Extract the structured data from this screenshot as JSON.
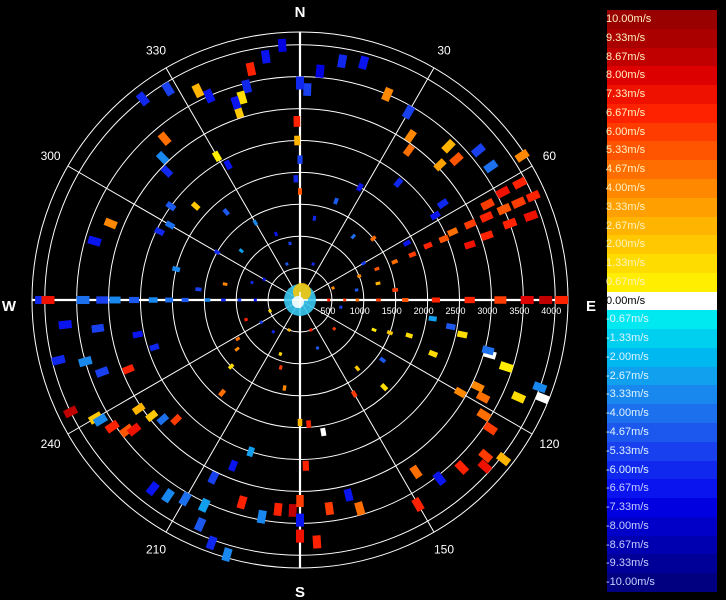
{
  "chart_data": {
    "type": "polar-scatter",
    "title": "",
    "compass_labels": [
      "N",
      "E",
      "S",
      "W"
    ],
    "angle_ticks": [
      "30",
      "60",
      "120",
      "150",
      "210",
      "240",
      "300",
      "330"
    ],
    "range_ticks": [
      "500",
      "1000",
      "1500",
      "2000",
      "2500",
      "3000",
      "3500",
      "4000"
    ],
    "range_max": 4200,
    "legend": {
      "placement": "right",
      "entries": [
        {
          "label": "10.00m/s",
          "color": "#990000"
        },
        {
          "label": "9.33m/s",
          "color": "#aa0000"
        },
        {
          "label": "8.67m/s",
          "color": "#c00000"
        },
        {
          "label": "8.00m/s",
          "color": "#dd0000"
        },
        {
          "label": "7.33m/s",
          "color": "#ee1100"
        },
        {
          "label": "6.67m/s",
          "color": "#ff2200"
        },
        {
          "label": "6.00m/s",
          "color": "#ff3c00"
        },
        {
          "label": "5.33m/s",
          "color": "#ff5500"
        },
        {
          "label": "4.67m/s",
          "color": "#ff6e00"
        },
        {
          "label": "4.00m/s",
          "color": "#ff8800"
        },
        {
          "label": "3.33m/s",
          "color": "#ffa000"
        },
        {
          "label": "2.67m/s",
          "color": "#ffb400"
        },
        {
          "label": "2.00m/s",
          "color": "#ffc800"
        },
        {
          "label": "1.33m/s",
          "color": "#ffdc00"
        },
        {
          "label": "0.67m/s",
          "color": "#ffee00"
        },
        {
          "label": "0.00m/s",
          "color": "#ffffff"
        },
        {
          "label": "-0.67m/s",
          "color": "#00e8f0"
        },
        {
          "label": "-1.33m/s",
          "color": "#00d0f0"
        },
        {
          "label": "-2.00m/s",
          "color": "#00b8f0"
        },
        {
          "label": "-2.67m/s",
          "color": "#10a0ee"
        },
        {
          "label": "-3.33m/s",
          "color": "#1888ee"
        },
        {
          "label": "-4.00m/s",
          "color": "#1c70ee"
        },
        {
          "label": "-4.67m/s",
          "color": "#1c58ee"
        },
        {
          "label": "-5.33m/s",
          "color": "#1840ee"
        },
        {
          "label": "-6.00m/s",
          "color": "#1028ee"
        },
        {
          "label": "-6.67m/s",
          "color": "#0a14ee"
        },
        {
          "label": "-7.33m/s",
          "color": "#0000e0"
        },
        {
          "label": "-8.00m/s",
          "color": "#0000c8"
        },
        {
          "label": "-8.67m/s",
          "color": "#0000b0"
        },
        {
          "label": "-9.33m/s",
          "color": "#000098"
        },
        {
          "label": "-10.00m/s",
          "color": "#000080"
        }
      ]
    },
    "points": [
      {
        "az": 90,
        "r": 3560,
        "v": 8.0
      },
      {
        "az": 90,
        "r": 3850,
        "v": 8.67
      },
      {
        "az": 90,
        "r": 4100,
        "v": 6.67
      },
      {
        "az": 90,
        "r": 3140,
        "v": 6.0
      },
      {
        "az": 90,
        "r": 2660,
        "v": 6.67
      },
      {
        "az": 90,
        "r": 2130,
        "v": 6.67
      },
      {
        "az": 90,
        "r": 1650,
        "v": 5.33
      },
      {
        "az": 90,
        "r": 1230,
        "v": 6.0
      },
      {
        "az": 90,
        "r": 900,
        "v": 4.67
      },
      {
        "az": 90,
        "r": 700,
        "v": 6.0
      },
      {
        "az": 90,
        "r": 450,
        "v": 6.67
      },
      {
        "az": 66,
        "r": 4000,
        "v": 6.67
      },
      {
        "az": 66,
        "r": 3750,
        "v": 6.0
      },
      {
        "az": 66,
        "r": 3500,
        "v": 5.33
      },
      {
        "az": 66,
        "r": 3200,
        "v": 6.67
      },
      {
        "az": 66,
        "r": 2920,
        "v": 6.0
      },
      {
        "az": 66,
        "r": 2620,
        "v": 4.67
      },
      {
        "az": 67,
        "r": 2450,
        "v": 5.33
      },
      {
        "az": 67,
        "r": 2180,
        "v": 6.67
      },
      {
        "az": 68,
        "r": 1900,
        "v": 6.0
      },
      {
        "az": 68,
        "r": 1600,
        "v": 4.67
      },
      {
        "az": 68,
        "r": 1300,
        "v": 5.33
      },
      {
        "az": 68,
        "r": 1000,
        "v": 4.0
      },
      {
        "az": 62,
        "r": 3900,
        "v": 6.67
      },
      {
        "az": 62,
        "r": 3600,
        "v": 7.33
      },
      {
        "az": 63,
        "r": 3300,
        "v": 6.0
      },
      {
        "az": 70,
        "r": 3850,
        "v": 7.33
      },
      {
        "az": 70,
        "r": 3500,
        "v": 6.67
      },
      {
        "az": 71,
        "r": 3100,
        "v": 6.67
      },
      {
        "az": 72,
        "r": 2800,
        "v": 7.33
      },
      {
        "az": 57,
        "r": 4150,
        "v": 4.0
      },
      {
        "az": 55,
        "r": 3650,
        "v": -4.0
      },
      {
        "az": 50,
        "r": 3650,
        "v": -5.33
      },
      {
        "az": 48,
        "r": 3300,
        "v": 5.33
      },
      {
        "az": 46,
        "r": 3050,
        "v": 3.33
      },
      {
        "az": 44,
        "r": 3350,
        "v": 2.67
      },
      {
        "az": 56,
        "r": 2700,
        "v": -6.0
      },
      {
        "az": 58,
        "r": 2500,
        "v": -6.67
      },
      {
        "az": 62,
        "r": 1900,
        "v": -6.67
      },
      {
        "az": 40,
        "r": 2400,
        "v": -6.0
      },
      {
        "az": 36,
        "r": 2900,
        "v": 4.67
      },
      {
        "az": 34,
        "r": 3100,
        "v": 4.0
      },
      {
        "az": 30,
        "r": 3400,
        "v": -5.33
      },
      {
        "az": 23,
        "r": 3500,
        "v": 4.0
      },
      {
        "az": 15,
        "r": 3850,
        "v": -6.67
      },
      {
        "az": 10,
        "r": 3800,
        "v": -6.0
      },
      {
        "az": 5,
        "r": 3600,
        "v": -7.33
      },
      {
        "az": 2,
        "r": 3300,
        "v": -5.33
      },
      {
        "az": 0,
        "r": 3400,
        "v": -6.0
      },
      {
        "az": 359,
        "r": 2800,
        "v": 6.67
      },
      {
        "az": 359,
        "r": 2500,
        "v": 2.67
      },
      {
        "az": 0,
        "r": 2200,
        "v": -5.33
      },
      {
        "az": 358,
        "r": 1900,
        "v": -6.0
      },
      {
        "az": 0,
        "r": 1700,
        "v": 5.33
      },
      {
        "az": 356,
        "r": 4000,
        "v": -7.33
      },
      {
        "az": 352,
        "r": 3850,
        "v": -6.67
      },
      {
        "az": 348,
        "r": 3700,
        "v": 6.67
      },
      {
        "az": 346,
        "r": 3450,
        "v": -6.0
      },
      {
        "az": 344,
        "r": 3300,
        "v": 1.33
      },
      {
        "az": 342,
        "r": 3100,
        "v": 2.0
      },
      {
        "az": 342,
        "r": 3250,
        "v": -6.67
      },
      {
        "az": 336,
        "r": 3500,
        "v": -6.67
      },
      {
        "az": 334,
        "r": 3650,
        "v": 2.67
      },
      {
        "az": 328,
        "r": 3900,
        "v": -5.33
      },
      {
        "az": 322,
        "r": 4000,
        "v": -6.0
      },
      {
        "az": 320,
        "r": 3300,
        "v": 4.67
      },
      {
        "az": 316,
        "r": 3100,
        "v": -3.33
      },
      {
        "az": 314,
        "r": 2900,
        "v": -6.0
      },
      {
        "az": 330,
        "r": 2600,
        "v": 0.67
      },
      {
        "az": 332,
        "r": 2400,
        "v": -6.67
      },
      {
        "az": 312,
        "r": 2200,
        "v": 2.0
      },
      {
        "az": 306,
        "r": 2500,
        "v": -4.67
      },
      {
        "az": 300,
        "r": 2350,
        "v": -4.0
      },
      {
        "az": 296,
        "r": 2450,
        "v": -6.0
      },
      {
        "az": 292,
        "r": 3200,
        "v": 4.0
      },
      {
        "az": 286,
        "r": 3350,
        "v": -6.67
      },
      {
        "az": 270,
        "r": 4050,
        "v": -6.0
      },
      {
        "az": 270,
        "r": 3950,
        "v": 7.33
      },
      {
        "az": 270,
        "r": 3400,
        "v": -4.0
      },
      {
        "az": 270,
        "r": 3100,
        "v": -5.33
      },
      {
        "az": 270,
        "r": 2900,
        "v": -3.33
      },
      {
        "az": 270,
        "r": 2600,
        "v": -4.67
      },
      {
        "az": 270,
        "r": 2300,
        "v": -3.33
      },
      {
        "az": 270,
        "r": 2050,
        "v": -4.0
      },
      {
        "az": 270,
        "r": 1800,
        "v": -4.67
      },
      {
        "az": 270,
        "r": 1450,
        "v": -3.33
      },
      {
        "az": 270,
        "r": 1200,
        "v": -6.0
      },
      {
        "az": 270,
        "r": 950,
        "v": -5.33
      },
      {
        "az": 270,
        "r": 700,
        "v": -6.67
      },
      {
        "az": 264,
        "r": 3700,
        "v": -6.67
      },
      {
        "az": 262,
        "r": 3200,
        "v": -5.33
      },
      {
        "az": 256,
        "r": 3900,
        "v": -6.0
      },
      {
        "az": 254,
        "r": 3500,
        "v": -3.33
      },
      {
        "az": 258,
        "r": 2600,
        "v": -6.67
      },
      {
        "az": 250,
        "r": 3300,
        "v": -5.33
      },
      {
        "az": 248,
        "r": 2900,
        "v": 6.67
      },
      {
        "az": 252,
        "r": 2400,
        "v": -6.0
      },
      {
        "az": 244,
        "r": 4000,
        "v": 8.67
      },
      {
        "az": 240,
        "r": 3700,
        "v": 2.0
      },
      {
        "az": 239,
        "r": 3650,
        "v": -3.33
      },
      {
        "az": 236,
        "r": 3550,
        "v": 6.67
      },
      {
        "az": 233,
        "r": 3400,
        "v": 5.33
      },
      {
        "az": 232,
        "r": 3300,
        "v": 7.33
      },
      {
        "az": 236,
        "r": 3050,
        "v": 2.67
      },
      {
        "az": 232,
        "r": 2950,
        "v": 2.0
      },
      {
        "az": 229,
        "r": 2850,
        "v": -4.0
      },
      {
        "az": 226,
        "r": 2700,
        "v": 6.0
      },
      {
        "az": 218,
        "r": 3750,
        "v": -6.67
      },
      {
        "az": 214,
        "r": 3700,
        "v": -3.33
      },
      {
        "az": 210,
        "r": 3600,
        "v": -4.0
      },
      {
        "az": 205,
        "r": 3550,
        "v": -2.67
      },
      {
        "az": 204,
        "r": 3850,
        "v": -4.67
      },
      {
        "az": 200,
        "r": 4050,
        "v": -6.0
      },
      {
        "az": 196,
        "r": 4150,
        "v": -3.33
      },
      {
        "az": 206,
        "r": 3100,
        "v": -5.33
      },
      {
        "az": 202,
        "r": 2800,
        "v": -6.67
      },
      {
        "az": 198,
        "r": 2500,
        "v": -2.67
      },
      {
        "az": 196,
        "r": 3300,
        "v": 6.67
      },
      {
        "az": 190,
        "r": 3450,
        "v": -3.33
      },
      {
        "az": 186,
        "r": 3300,
        "v": 6.67
      },
      {
        "az": 182,
        "r": 3300,
        "v": 8.67
      },
      {
        "az": 180,
        "r": 3700,
        "v": 7.33
      },
      {
        "az": 180,
        "r": 3450,
        "v": -6.67
      },
      {
        "az": 180,
        "r": 3150,
        "v": 6.0
      },
      {
        "az": 178,
        "r": 2600,
        "v": 6.67
      },
      {
        "az": 176,
        "r": 3800,
        "v": 6.67
      },
      {
        "az": 172,
        "r": 3300,
        "v": 6.0
      },
      {
        "az": 164,
        "r": 3400,
        "v": 4.67
      },
      {
        "az": 166,
        "r": 3150,
        "v": -6.67
      },
      {
        "az": 170,
        "r": 2100,
        "v": 0.0
      },
      {
        "az": 176,
        "r": 1950,
        "v": 6.67
      },
      {
        "az": 180,
        "r": 1920,
        "v": 2.67
      },
      {
        "az": 150,
        "r": 3700,
        "v": 6.67
      },
      {
        "az": 146,
        "r": 3250,
        "v": 4.67
      },
      {
        "az": 142,
        "r": 3550,
        "v": -6.67
      },
      {
        "az": 136,
        "r": 3650,
        "v": 6.67
      },
      {
        "az": 132,
        "r": 3900,
        "v": 7.33
      },
      {
        "az": 130,
        "r": 3800,
        "v": 6.0
      },
      {
        "az": 128,
        "r": 4050,
        "v": 2.67
      },
      {
        "az": 124,
        "r": 3600,
        "v": 6.0
      },
      {
        "az": 122,
        "r": 3400,
        "v": 4.67
      },
      {
        "az": 114,
        "r": 3750,
        "v": 1.33
      },
      {
        "az": 112,
        "r": 4100,
        "v": 0.0
      },
      {
        "az": 110,
        "r": 4000,
        "v": -3.33
      },
      {
        "az": 108,
        "r": 3400,
        "v": 0.67
      },
      {
        "az": 106,
        "r": 3100,
        "v": 0.0
      },
      {
        "az": 105,
        "r": 3050,
        "v": -4.0
      },
      {
        "az": 102,
        "r": 2600,
        "v": 1.33
      },
      {
        "az": 100,
        "r": 2400,
        "v": -4.67
      },
      {
        "az": 98,
        "r": 2100,
        "v": -2.67
      },
      {
        "az": 116,
        "r": 3100,
        "v": 4.0
      },
      {
        "az": 118,
        "r": 3250,
        "v": 4.67
      },
      {
        "az": 120,
        "r": 2900,
        "v": 4.0
      },
      {
        "az": 112,
        "r": 2250,
        "v": 1.33
      },
      {
        "az": 108,
        "r": 1800,
        "v": 1.33
      },
      {
        "az": 110,
        "r": 1500,
        "v": 2.0
      },
      {
        "az": 112,
        "r": 1250,
        "v": 0.67
      },
      {
        "az": 140,
        "r": 1400,
        "v": 2.0
      },
      {
        "az": 220,
        "r": 1900,
        "v": 4.67
      },
      {
        "az": 226,
        "r": 1500,
        "v": 1.33
      },
      {
        "az": 232,
        "r": 1250,
        "v": 4.0
      },
      {
        "az": 238,
        "r": 1150,
        "v": 4.67
      },
      {
        "az": 250,
        "r": 900,
        "v": 6.67
      },
      {
        "az": 190,
        "r": 1400,
        "v": 4.0
      },
      {
        "az": 196,
        "r": 1100,
        "v": 6.0
      },
      {
        "az": 200,
        "r": 900,
        "v": 1.33
      },
      {
        "az": 150,
        "r": 1700,
        "v": 6.0
      },
      {
        "az": 136,
        "r": 1900,
        "v": 1.33
      },
      {
        "az": 126,
        "r": 1600,
        "v": -4.67
      },
      {
        "az": 320,
        "r": 1800,
        "v": -4.67
      },
      {
        "az": 300,
        "r": 1500,
        "v": -6.0
      },
      {
        "az": 310,
        "r": 1200,
        "v": -2.67
      },
      {
        "az": 330,
        "r": 1400,
        "v": -3.33
      },
      {
        "az": 340,
        "r": 1100,
        "v": -6.67
      },
      {
        "az": 350,
        "r": 900,
        "v": -5.33
      },
      {
        "az": 10,
        "r": 1300,
        "v": -6.0
      },
      {
        "az": 20,
        "r": 1650,
        "v": -4.67
      },
      {
        "az": 28,
        "r": 2000,
        "v": -6.67
      },
      {
        "az": 40,
        "r": 1300,
        "v": -4.0
      },
      {
        "az": 50,
        "r": 1500,
        "v": 4.67
      },
      {
        "az": 60,
        "r": 1150,
        "v": -5.33
      },
      {
        "az": 78,
        "r": 1250,
        "v": 2.67
      },
      {
        "az": 80,
        "r": 900,
        "v": -4.67
      },
      {
        "az": 84,
        "r": 1500,
        "v": 6.0
      },
      {
        "az": 276,
        "r": 1600,
        "v": -5.33
      },
      {
        "az": 284,
        "r": 2000,
        "v": -3.33
      },
      {
        "az": 282,
        "r": 1200,
        "v": 4.0
      },
      {
        "az": 290,
        "r": 800,
        "v": -6.0
      },
      {
        "az": 300,
        "r": 650,
        "v": -6.67
      },
      {
        "az": 240,
        "r": 700,
        "v": -5.33
      },
      {
        "az": 220,
        "r": 650,
        "v": -6.0
      },
      {
        "az": 160,
        "r": 800,
        "v": -4.67
      },
      {
        "az": 130,
        "r": 700,
        "v": 6.0
      },
      {
        "az": 100,
        "r": 650,
        "v": -5.33
      },
      {
        "az": 20,
        "r": 600,
        "v": -6.0
      },
      {
        "az": 340,
        "r": 600,
        "v": -4.67
      },
      {
        "az": 70,
        "r": 550,
        "v": 4.0
      },
      {
        "az": 250,
        "r": 500,
        "v": 1.33
      },
      {
        "az": 200,
        "r": 500,
        "v": 2.67
      },
      {
        "az": 160,
        "r": 500,
        "v": 6.67
      }
    ]
  }
}
